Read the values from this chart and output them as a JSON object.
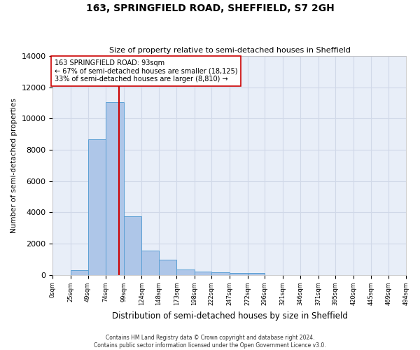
{
  "title": "163, SPRINGFIELD ROAD, SHEFFIELD, S7 2GH",
  "subtitle": "Size of property relative to semi-detached houses in Sheffield",
  "xlabel": "Distribution of semi-detached houses by size in Sheffield",
  "ylabel": "Number of semi-detached properties",
  "property_size": 93,
  "annotation_text_line1": "163 SPRINGFIELD ROAD: 93sqm",
  "annotation_text_line2": "← 67% of semi-detached houses are smaller (18,125)",
  "annotation_text_line3": "33% of semi-detached houses are larger (8,810) →",
  "footer_line1": "Contains HM Land Registry data © Crown copyright and database right 2024.",
  "footer_line2": "Contains public sector information licensed under the Open Government Licence v3.0.",
  "bar_bins": [
    0,
    25,
    49,
    74,
    99,
    124,
    148,
    173,
    198,
    222,
    247,
    272,
    296,
    321,
    346,
    371,
    395,
    420,
    445,
    469,
    494
  ],
  "bar_heights": [
    0,
    300,
    8650,
    11050,
    3750,
    1550,
    950,
    350,
    200,
    150,
    100,
    130,
    0,
    0,
    0,
    0,
    0,
    0,
    0,
    0
  ],
  "bar_color": "#aec6e8",
  "bar_edge_color": "#5a9fd4",
  "red_line_color": "#cc0000",
  "annotation_box_edge": "#cc0000",
  "grid_color": "#d0d8e8",
  "bg_color": "#e8eef8",
  "ylim": [
    0,
    14000
  ],
  "yticks": [
    0,
    2000,
    4000,
    6000,
    8000,
    10000,
    12000,
    14000
  ],
  "tick_labels": [
    "0sqm",
    "25sqm",
    "49sqm",
    "74sqm",
    "99sqm",
    "124sqm",
    "148sqm",
    "173sqm",
    "198sqm",
    "222sqm",
    "247sqm",
    "272sqm",
    "296sqm",
    "321sqm",
    "346sqm",
    "371sqm",
    "395sqm",
    "420sqm",
    "445sqm",
    "469sqm",
    "494sqm"
  ]
}
